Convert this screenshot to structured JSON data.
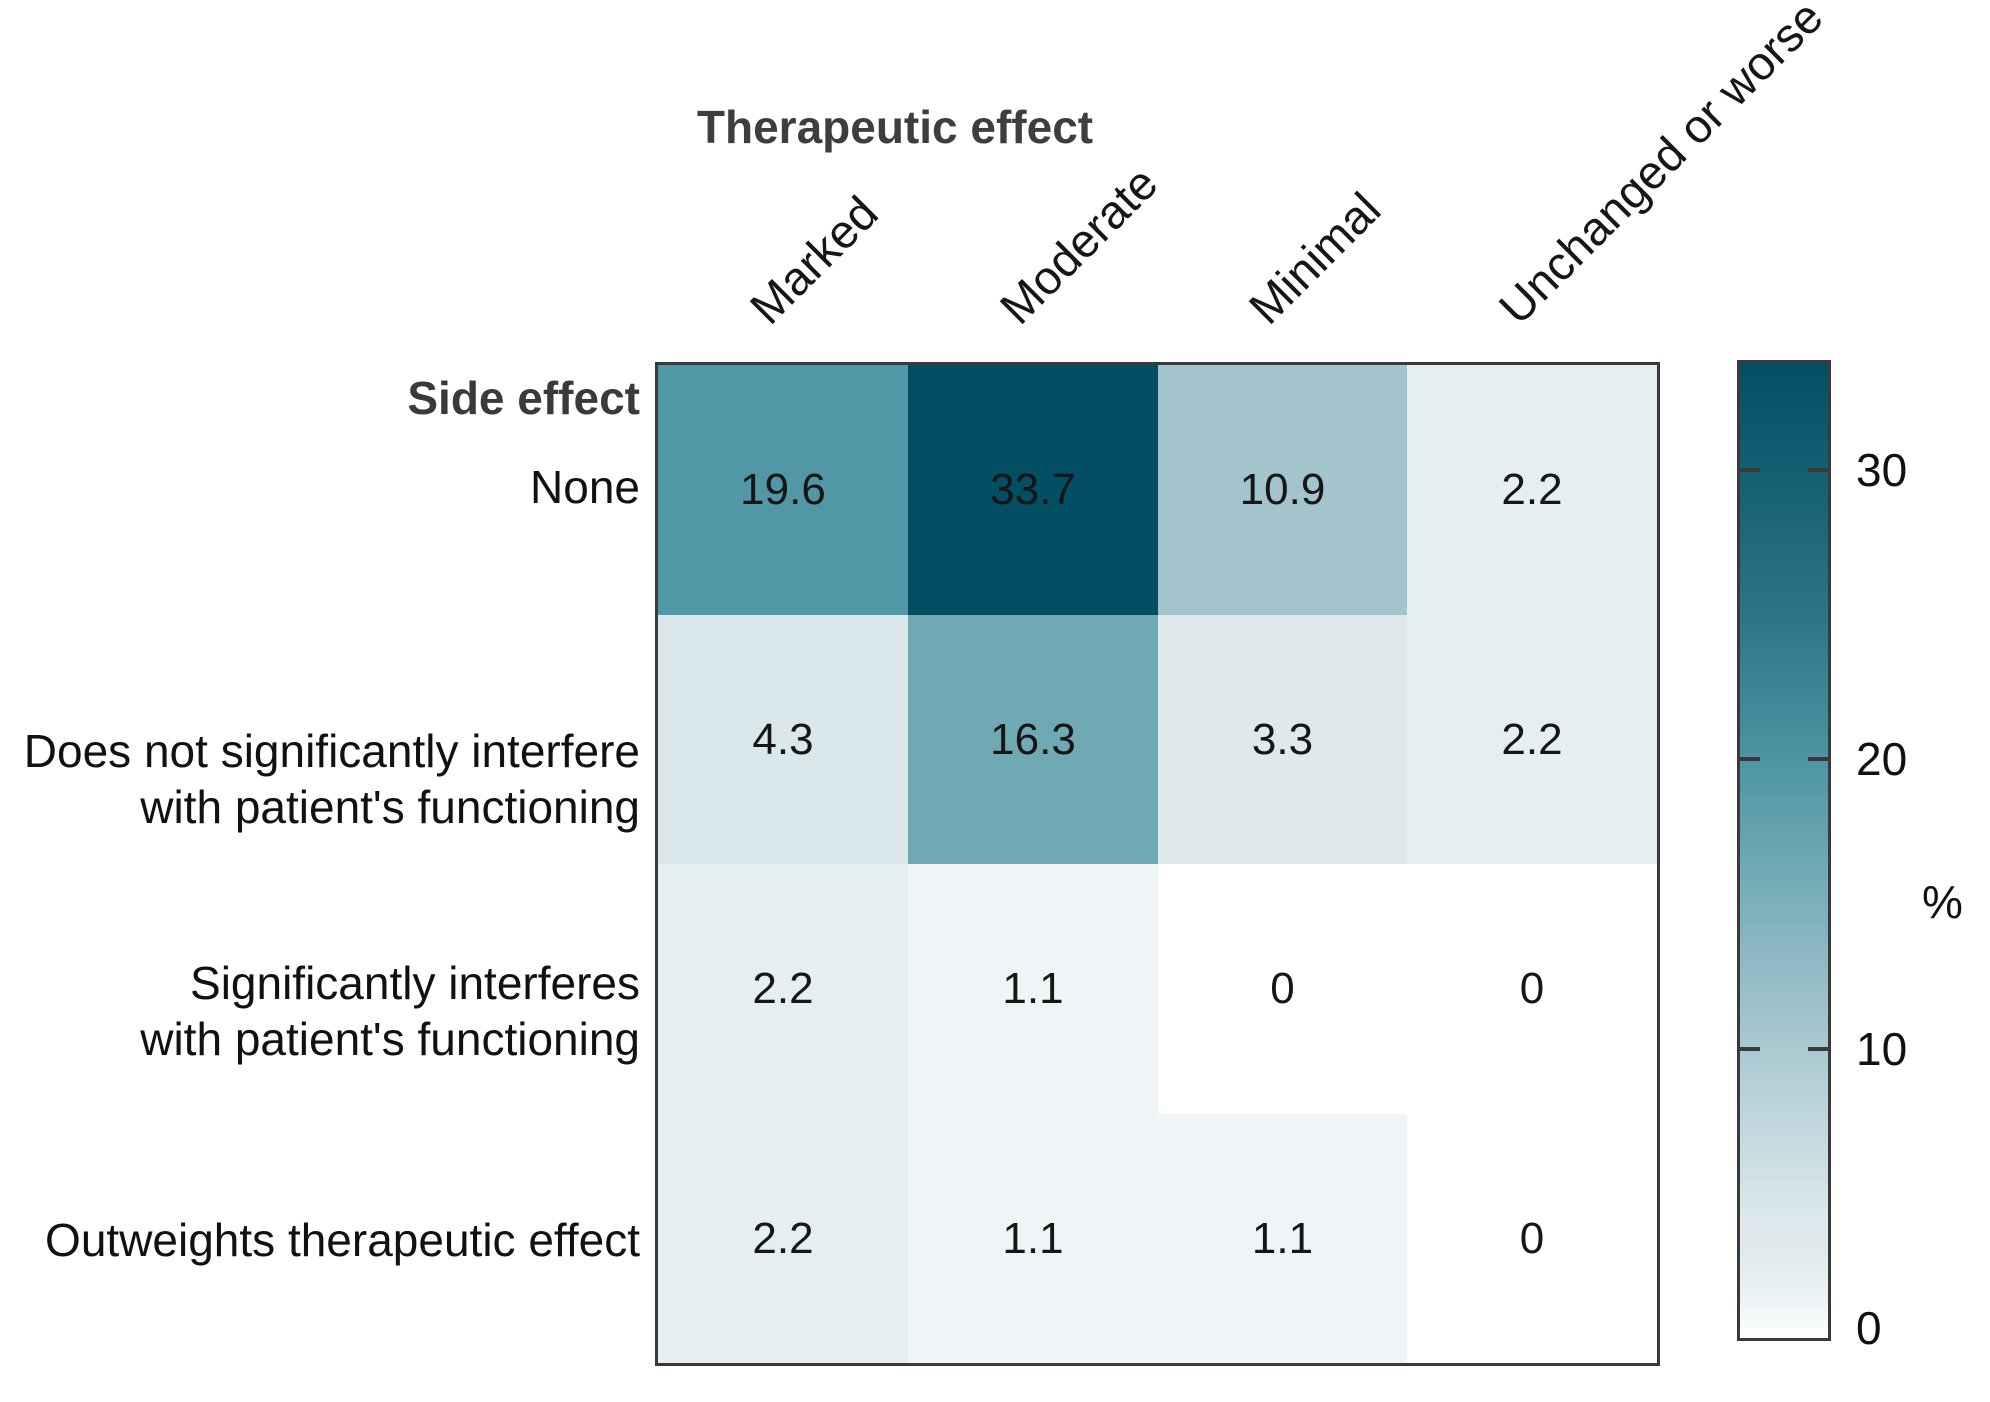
{
  "chart_data": {
    "type": "heatmap",
    "title": "Therapeutic effect",
    "row_axis_label": "Side effect",
    "unit_label": "%",
    "columns": [
      "Marked",
      "Moderate",
      "Minimal",
      "Unchanged or worse"
    ],
    "rows": [
      "None",
      "Does not significantly interfere\nwith patient's functioning",
      "Significantly interferes\nwith patient's functioning",
      "Outweights therapeutic effect"
    ],
    "values": [
      [
        19.6,
        33.7,
        10.9,
        2.2
      ],
      [
        4.3,
        16.3,
        3.3,
        2.2
      ],
      [
        2.2,
        1.1,
        0,
        0
      ],
      [
        2.2,
        1.1,
        1.1,
        0
      ]
    ],
    "value_range": [
      0,
      33.7
    ],
    "colorbar_ticks": [
      0,
      10,
      20,
      30
    ],
    "legend_position": "right",
    "grid": false,
    "colormap_anchors": [
      {
        "value": 0,
        "color": "#ffffff"
      },
      {
        "value": 1.1,
        "color": "#eff5f6"
      },
      {
        "value": 2.2,
        "color": "#e5eef0"
      },
      {
        "value": 3.3,
        "color": "#dee9ec"
      },
      {
        "value": 4.3,
        "color": "#dbe8eb"
      },
      {
        "value": 10.9,
        "color": "#a3c4cd"
      },
      {
        "value": 16.3,
        "color": "#6fa9b3"
      },
      {
        "value": 19.6,
        "color": "#5197a5"
      },
      {
        "value": 25,
        "color": "#2d7487"
      },
      {
        "value": 33.7,
        "color": "#024f63"
      }
    ],
    "styles": {
      "border_color": "#3a3a3a",
      "title_color": "#3e3e3e",
      "label_color": "#111111",
      "max_color": "#024f63"
    }
  }
}
